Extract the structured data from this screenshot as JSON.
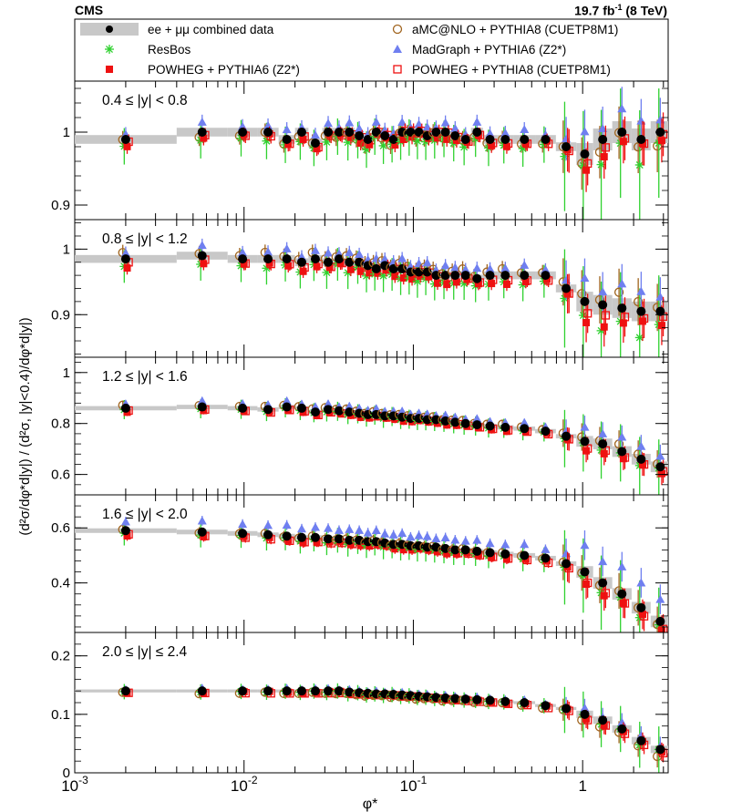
{
  "header": {
    "experiment": "CMS",
    "lumi_value": "19.7 fb",
    "lumi_exp": "-1",
    "energy": "(8 TeV)"
  },
  "legend": [
    {
      "label": "ee + μμ combined data",
      "marker": "data",
      "color": "#000000"
    },
    {
      "label": "aMC@NLO + PYTHIA8 (CUETP8M1)",
      "marker": "circle-open",
      "color": "#a0641e"
    },
    {
      "label": "ResBos",
      "marker": "asterisk",
      "color": "#2ed12e"
    },
    {
      "label": "MadGraph + PYTHIA6 (Z2*)",
      "marker": "triangle",
      "color": "#6f7ff0"
    },
    {
      "label": "POWHEG + PYTHIA6 (Z2*)",
      "marker": "square-filled",
      "color": "#ee1111"
    },
    {
      "label": "POWHEG + PYTHIA8 (CUETP8M1)",
      "marker": "square-open",
      "color": "#ee1111"
    }
  ],
  "chart_data": {
    "type": "scatter",
    "xlabel": "φ*",
    "ylabel": "(d²σ/dφ*d|y|) / (d²σ, |y|<0.4)/dφ*d|y|)",
    "xscale": "log",
    "xlim": [
      0.001,
      3.2
    ],
    "xticks": [
      {
        "v": 0.001,
        "b": "10",
        "e": "-3"
      },
      {
        "v": 0.01,
        "b": "10",
        "e": "-2"
      },
      {
        "v": 0.1,
        "b": "10",
        "e": "-1"
      },
      {
        "v": 1,
        "b": "1",
        "e": ""
      }
    ],
    "phi_bin_edges": [
      0.001,
      0.004,
      0.008,
      0.012,
      0.016,
      0.02,
      0.024,
      0.029,
      0.034,
      0.039,
      0.045,
      0.051,
      0.057,
      0.064,
      0.072,
      0.081,
      0.091,
      0.102,
      0.114,
      0.128,
      0.145,
      0.165,
      0.189,
      0.219,
      0.258,
      0.312,
      0.391,
      0.524,
      0.695,
      0.918,
      1.153,
      1.496,
      1.947,
      2.522,
      3.277
    ],
    "panels": [
      {
        "label": "0.4 ≤ |y| < 0.8",
        "ylim": [
          0.88,
          1.07
        ],
        "yticks": [
          0.9,
          1
        ],
        "data": [
          0.99,
          1.0,
          1.0,
          1.0,
          0.99,
          1.0,
          0.985,
          1.0,
          1.0,
          1.0,
          0.995,
          0.99,
          1.0,
          0.995,
          0.99,
          1.0,
          1.0,
          1.0,
          0.995,
          1.0,
          1.0,
          0.995,
          0.99,
          1.0,
          0.99,
          0.99,
          0.99,
          0.99,
          0.98,
          0.97,
          0.99,
          1.0,
          0.99,
          1.0
        ]
      },
      {
        "label": "0.8 ≤ |y| < 1.2",
        "ylim": [
          0.835,
          1.045
        ],
        "yticks": [
          0.9,
          1
        ],
        "data": [
          0.985,
          0.99,
          0.985,
          0.985,
          0.985,
          0.98,
          0.985,
          0.98,
          0.985,
          0.98,
          0.98,
          0.975,
          0.97,
          0.975,
          0.97,
          0.97,
          0.965,
          0.965,
          0.965,
          0.96,
          0.96,
          0.96,
          0.96,
          0.955,
          0.96,
          0.96,
          0.96,
          0.96,
          0.94,
          0.92,
          0.915,
          0.91,
          0.905,
          0.905
        ]
      },
      {
        "label": "1.2 ≤ |y| < 1.6",
        "ylim": [
          0.52,
          1.06
        ],
        "yticks": [
          0.6,
          0.8,
          1
        ],
        "data": [
          0.86,
          0.865,
          0.86,
          0.855,
          0.865,
          0.86,
          0.845,
          0.855,
          0.85,
          0.845,
          0.84,
          0.835,
          0.835,
          0.83,
          0.83,
          0.825,
          0.82,
          0.82,
          0.815,
          0.815,
          0.81,
          0.805,
          0.8,
          0.795,
          0.79,
          0.785,
          0.78,
          0.77,
          0.75,
          0.73,
          0.72,
          0.69,
          0.66,
          0.63
        ]
      },
      {
        "label": "1.6 ≤ |y| < 2.0",
        "ylim": [
          0.22,
          0.72
        ],
        "yticks": [
          0.4,
          0.6
        ],
        "data": [
          0.59,
          0.585,
          0.58,
          0.575,
          0.57,
          0.565,
          0.565,
          0.56,
          0.56,
          0.555,
          0.555,
          0.55,
          0.55,
          0.545,
          0.54,
          0.54,
          0.535,
          0.535,
          0.53,
          0.53,
          0.525,
          0.52,
          0.52,
          0.515,
          0.51,
          0.505,
          0.5,
          0.49,
          0.47,
          0.44,
          0.4,
          0.36,
          0.31,
          0.26
        ]
      },
      {
        "label": "2.0 ≤ |y| ≤ 2.4",
        "ylim": [
          0.0,
          0.24
        ],
        "yticks": [
          0,
          0.1,
          0.2
        ],
        "data": [
          0.14,
          0.14,
          0.14,
          0.14,
          0.14,
          0.14,
          0.14,
          0.14,
          0.14,
          0.138,
          0.137,
          0.136,
          0.135,
          0.135,
          0.134,
          0.133,
          0.132,
          0.131,
          0.13,
          0.129,
          0.128,
          0.127,
          0.126,
          0.125,
          0.124,
          0.122,
          0.12,
          0.115,
          0.11,
          0.1,
          0.09,
          0.075,
          0.055,
          0.04
        ]
      }
    ]
  }
}
